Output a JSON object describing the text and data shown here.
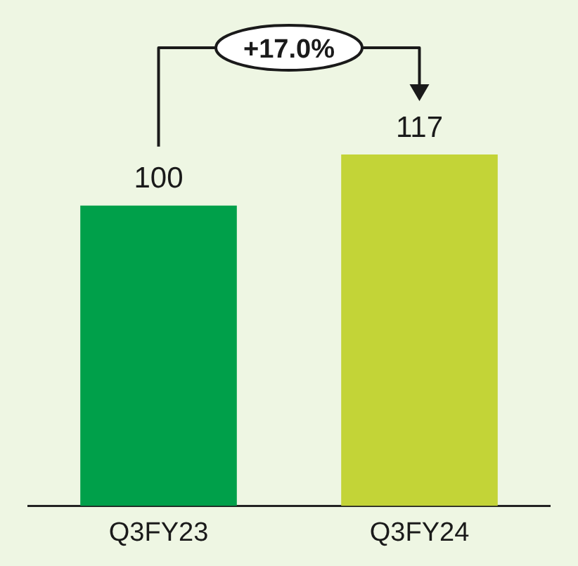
{
  "chart_data": {
    "type": "bar",
    "categories": [
      "Q3FY23",
      "Q3FY24"
    ],
    "values": [
      100,
      117
    ],
    "colors": [
      "#00a04a",
      "#c3d437"
    ],
    "data_labels": true,
    "grid": false,
    "legend": false,
    "annotations": [
      "+17.0%"
    ]
  }
}
